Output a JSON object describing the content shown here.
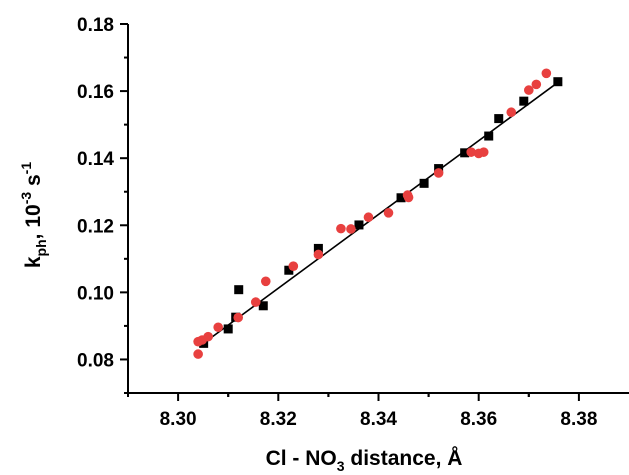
{
  "chart_data": {
    "type": "scatter",
    "xlabel": {
      "main": "Cl - NO",
      "sub": "3",
      "tail": " distance, Å"
    },
    "ylabel": {
      "main": "k",
      "sub": "ph",
      "mid": ", 10",
      "sup1": "-3",
      "mid2": " s",
      "sup2": "-1"
    },
    "xlim": [
      8.29,
      8.39
    ],
    "ylim": [
      0.07,
      0.18
    ],
    "xticks": [
      8.3,
      8.32,
      8.34,
      8.36,
      8.38
    ],
    "xtick_labels": [
      "8.30",
      "8.32",
      "8.34",
      "8.36",
      "8.38"
    ],
    "yticks": [
      0.08,
      0.1,
      0.12,
      0.14,
      0.16,
      0.18
    ],
    "ytick_labels": [
      "0.08",
      "0.10",
      "0.12",
      "0.14",
      "0.16",
      "0.18"
    ],
    "grid": false,
    "series": [
      {
        "marker": "square",
        "color": "#000000",
        "points": [
          [
            8.3051,
            0.0848
          ],
          [
            8.31,
            0.0891
          ],
          [
            8.3115,
            0.0926
          ],
          [
            8.3121,
            0.1008
          ],
          [
            8.317,
            0.096
          ],
          [
            8.3221,
            0.1066
          ],
          [
            8.328,
            0.1131
          ],
          [
            8.3361,
            0.1201
          ],
          [
            8.3445,
            0.1282
          ],
          [
            8.3491,
            0.1325
          ],
          [
            8.352,
            0.1369
          ],
          [
            8.3572,
            0.1416
          ],
          [
            8.362,
            0.1466
          ],
          [
            8.364,
            0.1518
          ],
          [
            8.369,
            0.157
          ],
          [
            8.3758,
            0.1628
          ]
        ]
      },
      {
        "marker": "circle",
        "color": "#e8403f",
        "points": [
          [
            8.304,
            0.0816
          ],
          [
            8.304,
            0.0853
          ],
          [
            8.3048,
            0.0858
          ],
          [
            8.306,
            0.0868
          ],
          [
            8.308,
            0.0896
          ],
          [
            8.312,
            0.0925
          ],
          [
            8.3155,
            0.0971
          ],
          [
            8.3175,
            0.1033
          ],
          [
            8.323,
            0.1078
          ],
          [
            8.328,
            0.1113
          ],
          [
            8.3325,
            0.119
          ],
          [
            8.3345,
            0.1189
          ],
          [
            8.338,
            0.1224
          ],
          [
            8.342,
            0.1237
          ],
          [
            8.3458,
            0.129
          ],
          [
            8.346,
            0.1283
          ],
          [
            8.352,
            0.1356
          ],
          [
            8.3585,
            0.1418
          ],
          [
            8.36,
            0.1414
          ],
          [
            8.361,
            0.1418
          ],
          [
            8.37,
            0.1603
          ],
          [
            8.3715,
            0.162
          ],
          [
            8.3735,
            0.1653
          ],
          [
            8.3665,
            0.1537
          ]
        ]
      }
    ],
    "fit_line": {
      "x1": 8.3045,
      "y1": 0.0842,
      "x2": 8.376,
      "y2": 0.1628
    }
  }
}
